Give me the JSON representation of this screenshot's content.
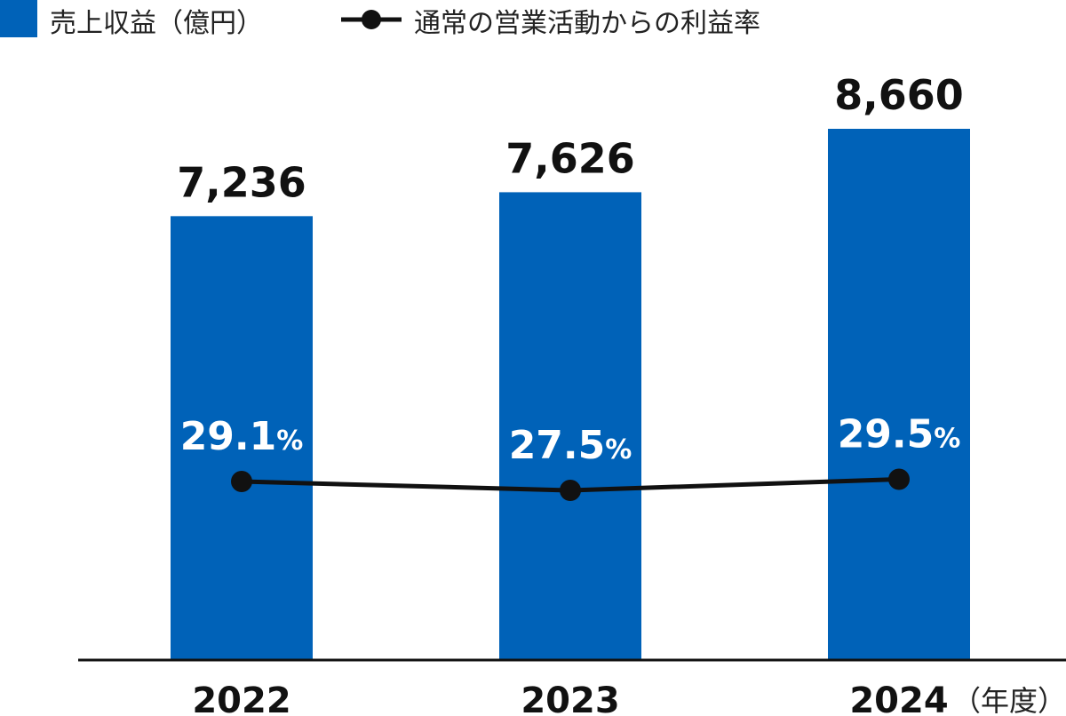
{
  "chart_data": {
    "type": "bar",
    "categories": [
      "2022",
      "2023",
      "2024"
    ],
    "x_unit": "（年度）",
    "series": [
      {
        "name": "売上収益（億円）",
        "kind": "bar",
        "values": [
          7236,
          7626,
          8660
        ],
        "labels": [
          "7,236",
          "7,626",
          "8,660"
        ],
        "color": "#0062b8"
      },
      {
        "name": "通常の営業活動からの利益率",
        "kind": "line",
        "values": [
          29.1,
          27.5,
          29.5
        ],
        "labels": [
          "29.1",
          "27.5",
          "29.5"
        ],
        "unit": "%",
        "color": "#111111"
      }
    ],
    "legend": "top-left",
    "grid": false
  }
}
